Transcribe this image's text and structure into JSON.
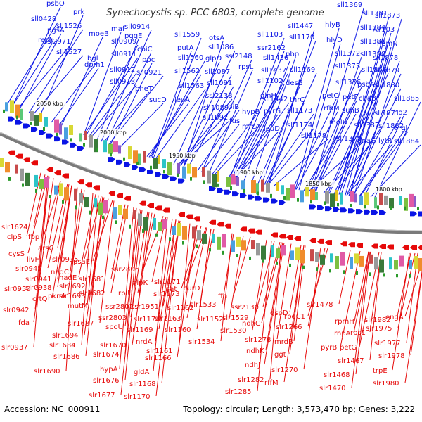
{
  "title": "Synechocystis sp. PCC 6803, complete genome",
  "accession": "Accession: NC_000911",
  "topology": "Topology: circular; Length: 3,573,470 bp; Genes: 3,222",
  "colors": {
    "forward": "#0a14e6",
    "reverse": "#e60a0a",
    "backbone": "#777777"
  },
  "kbp_labels": [
    "2050 kbp",
    "2000 kbp",
    "1950 kbp",
    "1900 kbp",
    "1850 kbp",
    "1800 kbp"
  ],
  "top_genes": [
    "psbO",
    "prk",
    "sll0428",
    "pgsA",
    "recN",
    "sll1526",
    "ssl2971",
    "sll1527",
    "moeB",
    "maf",
    "bgl",
    "sll0909",
    "sll0914",
    "pqqE",
    "dpm1",
    "sll0911",
    "cbiC",
    "ppc",
    "sll0912",
    "sll0913",
    "sll0921",
    "pheT",
    "sucD",
    "sll1559",
    "putA",
    "sll1560",
    "sll1562",
    "sll1563",
    "leuA",
    "otsA",
    "sll1086",
    "glpD",
    "ssl2148",
    "sll1087",
    "sll1091",
    "ssl2138",
    "sll1089",
    "sll1092",
    "rpiB",
    "fus",
    "sll1103",
    "ssr2162",
    "rpsL",
    "sll1102",
    "sll1436",
    "sll1437",
    "glnH",
    "hypB",
    "mrcA",
    "sll1447",
    "sll1170",
    "pbp",
    "sll1169",
    "desB",
    "thrC",
    "sll1442",
    "pyrG",
    "leuD",
    "sll1173",
    "sll1174",
    "sll1178",
    "sll1369",
    "hlyB",
    "hlyD",
    "sll1372",
    "sll1373",
    "sll1376",
    "petC",
    "rfbM",
    "melB",
    "sll1378",
    "sll1381",
    "sll1384",
    "sll1386",
    "sll1390",
    "sll1866",
    "psbA3",
    "petF",
    "suhB",
    "sll1387",
    "dnaG",
    "sll1873",
    "AT103",
    "hemN",
    "sll1878",
    "sll1879",
    "sll1880",
    "cbaB",
    "sll1871",
    "sll1882",
    "argJ",
    "lytR",
    "sll1884",
    "ho2",
    "sll1885"
  ],
  "bottom_genes": [
    "slr1624",
    "clpS",
    "fbp",
    "cysS",
    "arsC",
    "livH",
    "slr0935",
    "slr0945",
    "nadC",
    "slr0941",
    "nadE",
    "psaE",
    "slr0950",
    "slr0938",
    "slr1692",
    "crtQ",
    "slr1693",
    "slr0942",
    "pknA",
    "fda",
    "mutM",
    "slr1681",
    "slr1682",
    "ssr2806",
    "ssr2802",
    "glpK",
    "rplU",
    "slr1171",
    "slr1173",
    "slr1687",
    "ssr2803",
    "slr1694",
    "slr1684",
    "spoU",
    "slr1686",
    "slr1670",
    "slr1674",
    "hypA",
    "slr1676",
    "slr1677",
    "slr1690",
    "slr0937",
    "ssr1951",
    "sat",
    "purD",
    "slr1174",
    "slr1169",
    "slr1163",
    "slr1162",
    "slr1160",
    "nrdA",
    "slr1166",
    "slr1161",
    "gldA",
    "slr1168",
    "slr1170",
    "slr1533",
    "slr1152",
    "ffh",
    "slr1529",
    "slr1534",
    "slr1530",
    "ssr2130",
    "ndhC",
    "gspD",
    "slr1278",
    "ndhK",
    "ndhJ",
    "slr1282",
    "slr1285",
    "slr1266",
    "rpoC1",
    "mrdB",
    "ggt",
    "slr1270",
    "rffM",
    "slr1478",
    "rpmH",
    "rnpA",
    "petG",
    "slr1467",
    "slr1468",
    "slr1470",
    "pyrB",
    "rps1",
    "slr1982",
    "slr1975",
    "engA",
    "slr1977",
    "slr1978",
    "trpE",
    "slr1980"
  ]
}
